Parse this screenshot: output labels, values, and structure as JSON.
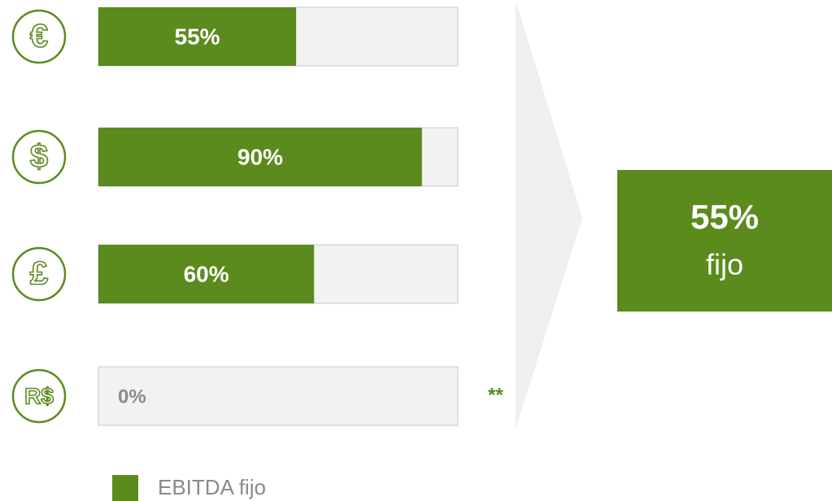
{
  "chart_data": {
    "type": "bar",
    "categories": [
      "€",
      "$",
      "£",
      "R$"
    ],
    "series": [
      {
        "name": "EBITDA fijo",
        "color": "#5b8a1d",
        "values": [
          55,
          90,
          60,
          0
        ],
        "value_labels": [
          "55%",
          "90%",
          "60%",
          "0%"
        ]
      }
    ],
    "xlim": [
      0,
      100
    ],
    "annotation": "**",
    "summary": {
      "label": "55%",
      "text": "fijo"
    }
  }
}
